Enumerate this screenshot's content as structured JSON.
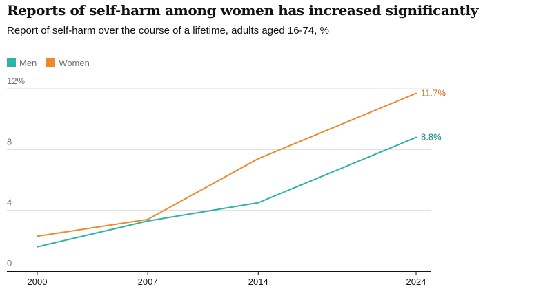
{
  "header": {
    "title": "Reports of self-harm among women has increased significantly",
    "subtitle": "Report of self-harm over the course of a lifetime, adults aged 16-74, %"
  },
  "legend": [
    {
      "label": "Men",
      "color": "#2eb3a8"
    },
    {
      "label": "Women",
      "color": "#f0882a"
    }
  ],
  "chart_data": {
    "type": "line",
    "title": "Reports of self-harm among women has increased significantly",
    "subtitle": "Report of self-harm over the course of a lifetime, adults aged 16-74, %",
    "x": [
      2000,
      2007,
      2014,
      2024
    ],
    "x_tick_labels": [
      "2000",
      "2007",
      "2014",
      "2024"
    ],
    "y_ticks": [
      0,
      4,
      8,
      12
    ],
    "y_tick_labels": [
      "0",
      "4",
      "8",
      "12%"
    ],
    "ylim": [
      0,
      12
    ],
    "grid": true,
    "legend_position": "top-left",
    "series": [
      {
        "name": "Men",
        "color": "#2eb3a8",
        "label_color": "#1a8a80",
        "values": [
          1.6,
          3.3,
          4.5,
          8.8
        ],
        "end_label": "8.8%"
      },
      {
        "name": "Women",
        "color": "#f0882a",
        "label_color": "#d2691e",
        "values": [
          2.3,
          3.4,
          7.4,
          11.7
        ],
        "end_label": "11.7%"
      }
    ]
  }
}
